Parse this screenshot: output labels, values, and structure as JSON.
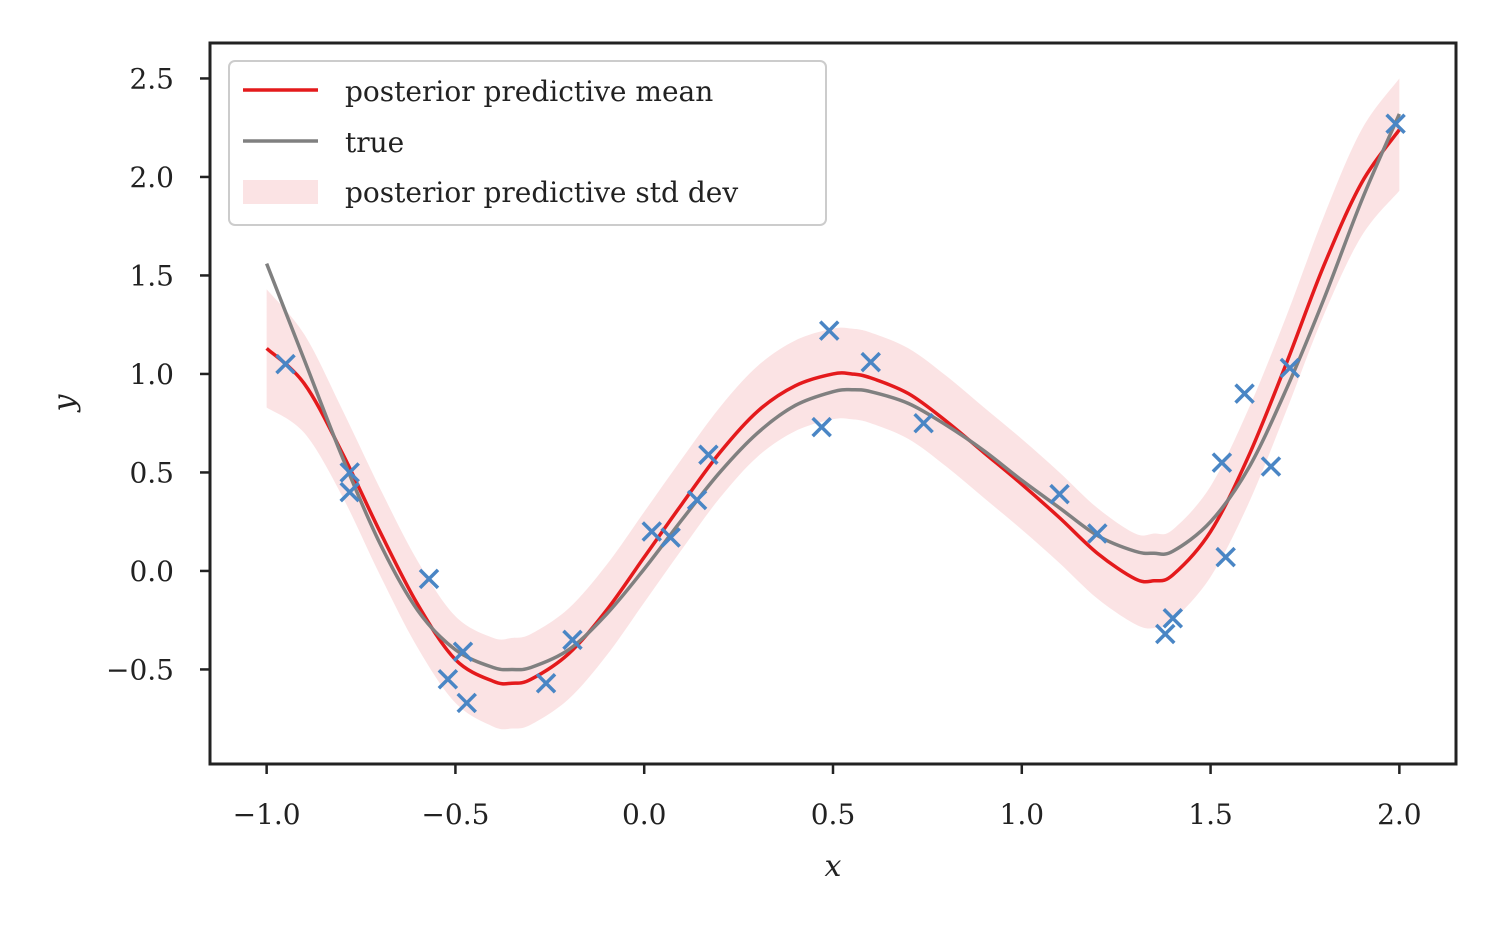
{
  "chart_data": {
    "type": "line",
    "title": "",
    "xlabel": "x",
    "ylabel": "y",
    "xlim": [
      -1.15,
      2.15
    ],
    "ylim": [
      -0.98,
      2.68
    ],
    "xticks": [
      -1.0,
      -0.5,
      0.0,
      0.5,
      1.0,
      1.5,
      2.0
    ],
    "xtick_labels": [
      "−1.0",
      "−0.5",
      "0.0",
      "0.5",
      "1.0",
      "1.5",
      "2.0"
    ],
    "yticks": [
      -0.5,
      0.0,
      0.5,
      1.0,
      1.5,
      2.0,
      2.5
    ],
    "ytick_labels": [
      "−0.5",
      "0.0",
      "0.5",
      "1.0",
      "1.5",
      "2.0",
      "2.5"
    ],
    "grid": false,
    "legend_position": "upper-left",
    "legend": [
      "posterior predictive mean",
      "true",
      "posterior predictive std dev"
    ],
    "colors": {
      "mean": "#e41a1c",
      "true": "#808080",
      "band": "#fbe3e4",
      "points": "#4a86c5",
      "axes": "#222222"
    },
    "series": [
      {
        "name": "posterior predictive mean",
        "x": [
          -1.0,
          -0.9,
          -0.8,
          -0.7,
          -0.6,
          -0.5,
          -0.4,
          -0.35,
          -0.3,
          -0.2,
          -0.1,
          0.0,
          0.1,
          0.2,
          0.3,
          0.4,
          0.5,
          0.55,
          0.6,
          0.7,
          0.8,
          0.9,
          1.0,
          1.1,
          1.2,
          1.3,
          1.35,
          1.4,
          1.5,
          1.6,
          1.7,
          1.8,
          1.9,
          2.0
        ],
        "y": [
          1.13,
          0.95,
          0.6,
          0.2,
          -0.17,
          -0.45,
          -0.56,
          -0.57,
          -0.55,
          -0.42,
          -0.2,
          0.07,
          0.34,
          0.6,
          0.81,
          0.94,
          1.0,
          1.0,
          0.98,
          0.9,
          0.76,
          0.6,
          0.44,
          0.27,
          0.09,
          -0.04,
          -0.05,
          -0.02,
          0.2,
          0.58,
          1.05,
          1.55,
          1.97,
          2.24
        ]
      },
      {
        "name": "true",
        "x": [
          -1.0,
          -0.9,
          -0.8,
          -0.7,
          -0.6,
          -0.5,
          -0.4,
          -0.35,
          -0.3,
          -0.2,
          -0.1,
          0.0,
          0.1,
          0.2,
          0.3,
          0.4,
          0.5,
          0.55,
          0.6,
          0.7,
          0.8,
          0.9,
          1.0,
          1.1,
          1.2,
          1.3,
          1.35,
          1.4,
          1.5,
          1.6,
          1.7,
          1.8,
          1.9,
          2.0
        ],
        "y": [
          1.56,
          1.07,
          0.58,
          0.14,
          -0.2,
          -0.4,
          -0.49,
          -0.5,
          -0.49,
          -0.4,
          -0.22,
          0.01,
          0.26,
          0.5,
          0.7,
          0.84,
          0.91,
          0.92,
          0.91,
          0.85,
          0.74,
          0.61,
          0.46,
          0.32,
          0.18,
          0.1,
          0.09,
          0.1,
          0.25,
          0.52,
          0.92,
          1.38,
          1.88,
          2.32
        ]
      }
    ],
    "band": {
      "name": "posterior predictive std dev",
      "x": [
        -1.0,
        -0.9,
        -0.8,
        -0.7,
        -0.6,
        -0.5,
        -0.4,
        -0.35,
        -0.3,
        -0.2,
        -0.1,
        0.0,
        0.1,
        0.2,
        0.3,
        0.4,
        0.5,
        0.55,
        0.6,
        0.7,
        0.8,
        0.9,
        1.0,
        1.1,
        1.2,
        1.3,
        1.35,
        1.4,
        1.5,
        1.6,
        1.7,
        1.8,
        1.9,
        2.0
      ],
      "lower": [
        0.83,
        0.7,
        0.38,
        -0.02,
        -0.39,
        -0.67,
        -0.79,
        -0.8,
        -0.78,
        -0.65,
        -0.43,
        -0.16,
        0.11,
        0.37,
        0.58,
        0.71,
        0.77,
        0.77,
        0.75,
        0.67,
        0.53,
        0.37,
        0.21,
        0.04,
        -0.14,
        -0.27,
        -0.29,
        -0.25,
        -0.03,
        0.34,
        0.81,
        1.3,
        1.7,
        1.93
      ],
      "upper": [
        1.43,
        1.2,
        0.82,
        0.42,
        0.05,
        -0.23,
        -0.34,
        -0.34,
        -0.32,
        -0.19,
        0.03,
        0.3,
        0.57,
        0.83,
        1.04,
        1.17,
        1.23,
        1.23,
        1.21,
        1.13,
        0.99,
        0.83,
        0.67,
        0.5,
        0.32,
        0.19,
        0.19,
        0.21,
        0.43,
        0.82,
        1.29,
        1.8,
        2.24,
        2.5
      ]
    },
    "scatter": {
      "x": [
        -0.95,
        -0.78,
        -0.78,
        -0.57,
        -0.52,
        -0.48,
        -0.47,
        -0.26,
        -0.19,
        0.02,
        0.07,
        0.14,
        0.17,
        0.47,
        0.49,
        0.6,
        0.74,
        1.1,
        1.2,
        1.38,
        1.4,
        1.53,
        1.54,
        1.59,
        1.66,
        1.71,
        1.99
      ],
      "y": [
        1.05,
        0.5,
        0.4,
        -0.04,
        -0.55,
        -0.41,
        -0.67,
        -0.57,
        -0.35,
        0.2,
        0.17,
        0.36,
        0.59,
        0.73,
        1.22,
        1.06,
        0.75,
        0.39,
        0.19,
        -0.32,
        -0.24,
        0.55,
        0.07,
        0.9,
        0.53,
        1.03,
        2.27
      ]
    }
  }
}
